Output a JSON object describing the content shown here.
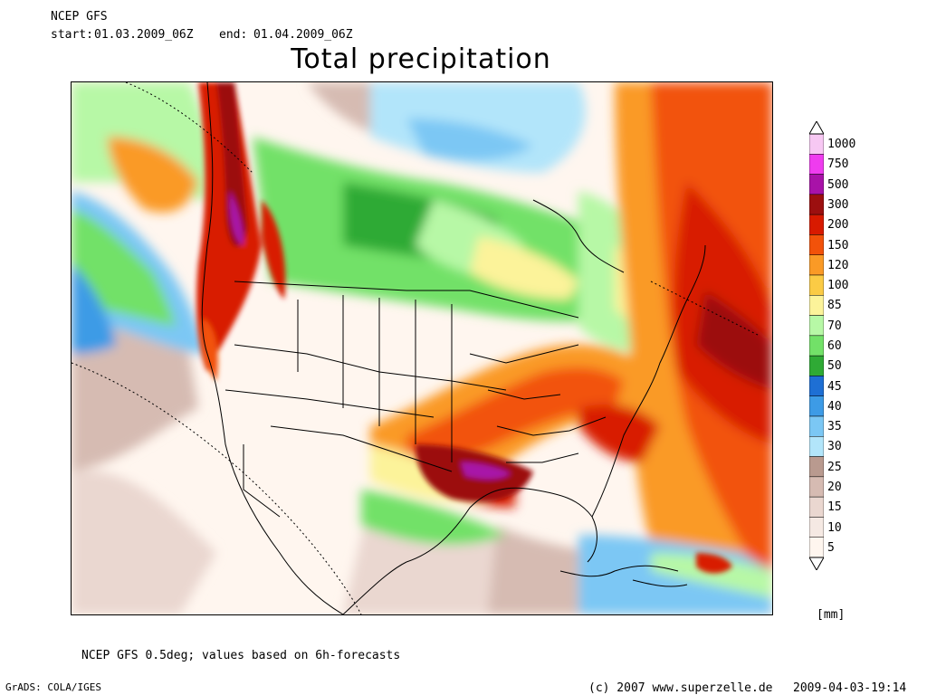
{
  "header": {
    "model": "NCEP GFS",
    "start_label": "start:",
    "start_value": "01.03.2009_06Z",
    "end_label": "end:",
    "end_value": "01.04.2009_06Z"
  },
  "title": "Total precipitation",
  "legend": {
    "unit": "[mm]",
    "levels": [
      {
        "label": "1000",
        "color": "#f7c8f3"
      },
      {
        "label": "750",
        "color": "#ef3cef"
      },
      {
        "label": "500",
        "color": "#a812a8"
      },
      {
        "label": "300",
        "color": "#9c0f0f"
      },
      {
        "label": "200",
        "color": "#d81a00"
      },
      {
        "label": "150",
        "color": "#f2520a"
      },
      {
        "label": "120",
        "color": "#fa9a26"
      },
      {
        "label": "100",
        "color": "#fbcb45"
      },
      {
        "label": "85",
        "color": "#fcf39a"
      },
      {
        "label": "70",
        "color": "#b7f8a6"
      },
      {
        "label": "60",
        "color": "#72e168"
      },
      {
        "label": "50",
        "color": "#2faa35"
      },
      {
        "label": "45",
        "color": "#1e6fd4"
      },
      {
        "label": "40",
        "color": "#3d9be6"
      },
      {
        "label": "35",
        "color": "#7bc7f4"
      },
      {
        "label": "30",
        "color": "#b2e5fa"
      },
      {
        "label": "25",
        "color": "#b99a8f"
      },
      {
        "label": "20",
        "color": "#d6bbb2"
      },
      {
        "label": "15",
        "color": "#ead7d0"
      },
      {
        "label": "10",
        "color": "#f5e9e3"
      },
      {
        "label": "5",
        "color": "#fff6ef"
      }
    ]
  },
  "footer": {
    "note": "NCEP GFS 0.5deg; values based on 6h-forecasts",
    "software": "GrADS: COLA/IGES",
    "copyright": "(c) 2007 www.superzelle.de",
    "timestamp": "2009-04-03-19:14"
  }
}
